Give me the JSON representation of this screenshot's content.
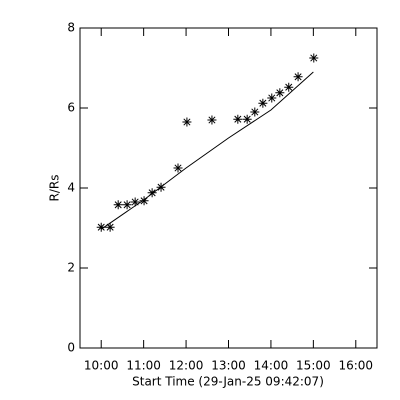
{
  "chart_data": {
    "type": "scatter",
    "xlabel": "Start Time (29-Jan-25 09:42:07)",
    "ylabel": "R/Rs",
    "xlim": [
      9.5,
      16.5
    ],
    "xticks": [
      {
        "value": 10,
        "label": "10:00"
      },
      {
        "value": 11,
        "label": "11:00"
      },
      {
        "value": 12,
        "label": "12:00"
      },
      {
        "value": 13,
        "label": "13:00"
      },
      {
        "value": 14,
        "label": "14:00"
      },
      {
        "value": 15,
        "label": "15:00"
      },
      {
        "value": 16,
        "label": "16:00"
      }
    ],
    "ylim": [
      0,
      8
    ],
    "yticks": [
      0,
      2,
      4,
      6,
      8
    ],
    "series": [
      {
        "marker": "asterisk",
        "color": "#000000",
        "x": [
          10.0,
          10.21,
          10.4,
          10.61,
          10.8,
          11.01,
          11.2,
          11.41,
          11.81,
          12.02,
          12.61,
          13.22,
          13.44,
          13.62,
          13.81,
          14.02,
          14.21,
          14.42,
          14.64,
          15.01
        ],
        "values": [
          3.02,
          3.02,
          3.58,
          3.58,
          3.65,
          3.68,
          3.88,
          4.02,
          4.5,
          5.65,
          5.7,
          5.72,
          5.72,
          5.9,
          6.12,
          6.25,
          6.38,
          6.52,
          6.78,
          7.25
        ]
      },
      {
        "marker": "line",
        "color": "#000000",
        "x": [
          10.0,
          11.0,
          12.0,
          13.0,
          14.0,
          15.0
        ],
        "values": [
          2.97,
          3.7,
          4.5,
          5.25,
          5.95,
          6.9
        ]
      }
    ]
  }
}
